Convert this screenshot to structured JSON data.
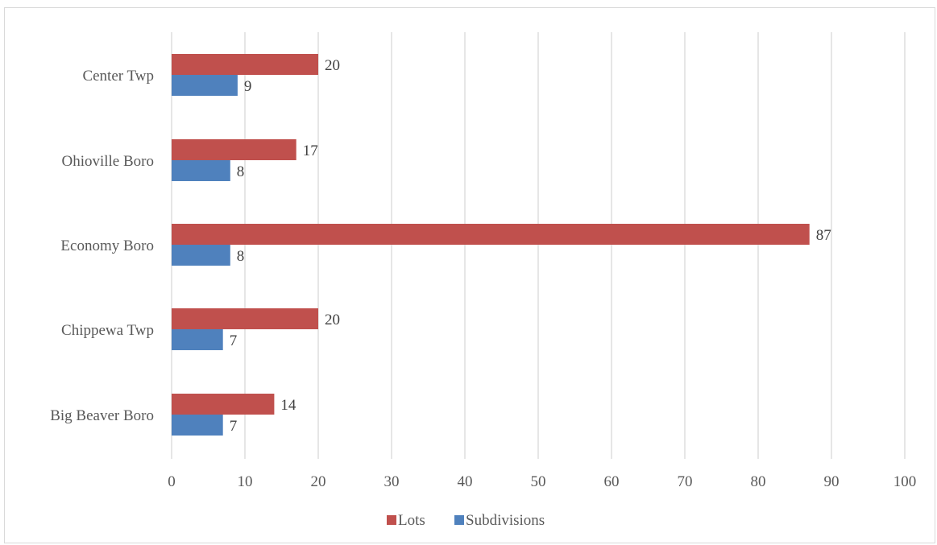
{
  "chart_data": {
    "type": "bar",
    "orientation": "horizontal",
    "categories": [
      "Center Twp",
      "Ohioville Boro",
      "Economy Boro",
      "Chippewa Twp",
      "Big Beaver Boro"
    ],
    "series": [
      {
        "name": "Lots",
        "color": "#c0504d",
        "values": [
          20,
          17,
          87,
          20,
          14
        ]
      },
      {
        "name": "Subdivisions",
        "color": "#4f81bd",
        "values": [
          9,
          8,
          8,
          7,
          7
        ]
      }
    ],
    "xlim": [
      0,
      100
    ],
    "xticks": [
      0,
      10,
      20,
      30,
      40,
      50,
      60,
      70,
      80,
      90,
      100
    ],
    "grid": "vertical",
    "data_labels": true,
    "legend": "bottom"
  },
  "colors": {
    "gridline": "#d9d9d9",
    "text": "#595959"
  }
}
